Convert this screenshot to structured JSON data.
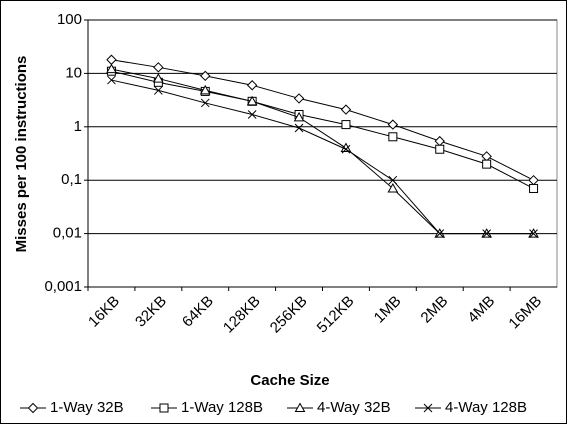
{
  "chart_data": {
    "type": "line",
    "x_label": "Cache Size",
    "y_label": "Misses per 100 instructions",
    "categories": [
      "16KB",
      "32KB",
      "64KB",
      "128KB",
      "256KB",
      "512KB",
      "1MB",
      "2MB",
      "4MB",
      "16MB"
    ],
    "log_scale": true,
    "grid": true,
    "legend": "bottom",
    "ylim": [
      0.001,
      100
    ],
    "yticks": [
      {
        "value": 0.001,
        "label": "0,001"
      },
      {
        "value": 0.01,
        "label": "0,01"
      },
      {
        "value": 0.1,
        "label": "0,1"
      },
      1,
      10,
      100
    ],
    "series": [
      {
        "name": "1-Way 32B",
        "color": "#000000",
        "marker": "diamond",
        "values": [
          18,
          13,
          9,
          6,
          3.4,
          2.1,
          1.1,
          0.54,
          0.28,
          0.1
        ]
      },
      {
        "name": "1-Way 128B",
        "color": "#000000",
        "marker": "square",
        "values": [
          11,
          6.8,
          4.6,
          3,
          1.7,
          1.1,
          0.65,
          0.38,
          0.2,
          0.07
        ]
      },
      {
        "name": "4-Way 32B",
        "color": "#000000",
        "marker": "triangle",
        "values": [
          12,
          8,
          4.8,
          3,
          1.5,
          0.4,
          0.07,
          0.01,
          0.01,
          0.01
        ]
      },
      {
        "name": "4-Way 128B",
        "color": "#000000",
        "marker": "x",
        "values": [
          7.5,
          4.8,
          2.8,
          1.7,
          0.95,
          0.38,
          0.1,
          0.01,
          0.01,
          0.01
        ]
      }
    ]
  }
}
